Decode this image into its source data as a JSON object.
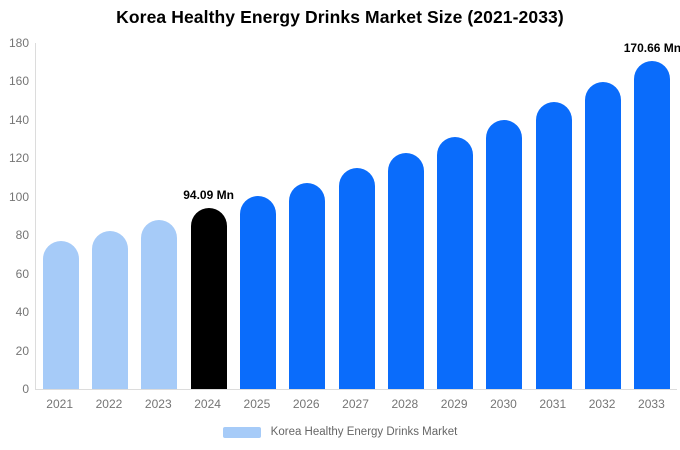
{
  "title": "Korea Healthy Energy Drinks Market Size (2021-2033)",
  "chart_data": {
    "type": "bar",
    "categories": [
      "2021",
      "2022",
      "2023",
      "2024",
      "2025",
      "2026",
      "2027",
      "2028",
      "2029",
      "2030",
      "2031",
      "2032",
      "2033"
    ],
    "values": [
      77.2,
      82.4,
      88.1,
      94.09,
      100.5,
      107.4,
      114.8,
      122.6,
      131.0,
      140.0,
      149.5,
      159.8,
      170.66
    ],
    "bar_colors": [
      "#a6cbf8",
      "#a6cbf8",
      "#a6cbf8",
      "#000000",
      "#0a6cfb",
      "#0a6cfb",
      "#0a6cfb",
      "#0a6cfb",
      "#0a6cfb",
      "#0a6cfb",
      "#0a6cfb",
      "#0a6cfb",
      "#0a6cfb"
    ],
    "annotations": [
      {
        "category": "2024",
        "label": "94.09 Mn"
      },
      {
        "category": "2033",
        "label": "170.66 Mn"
      }
    ],
    "ylim": [
      0,
      180
    ],
    "yticks": [
      "0",
      "20",
      "40",
      "60",
      "80",
      "100",
      "120",
      "140",
      "160",
      "180"
    ],
    "grid": false,
    "legend_position": "bottom",
    "xlabel": "",
    "ylabel": ""
  },
  "legend": {
    "label": "Korea Healthy Energy Drinks Market",
    "swatch_color": "#a6cbf8"
  },
  "colors": {
    "historical_bar": "#a6cbf8",
    "base_year_bar": "#000000",
    "forecast_bar": "#0a6cfb",
    "axis_line": "#dcdcdc",
    "tick_text": "#757575",
    "title_text": "#000000",
    "legend_text": "#666666",
    "background": "#ffffff"
  }
}
